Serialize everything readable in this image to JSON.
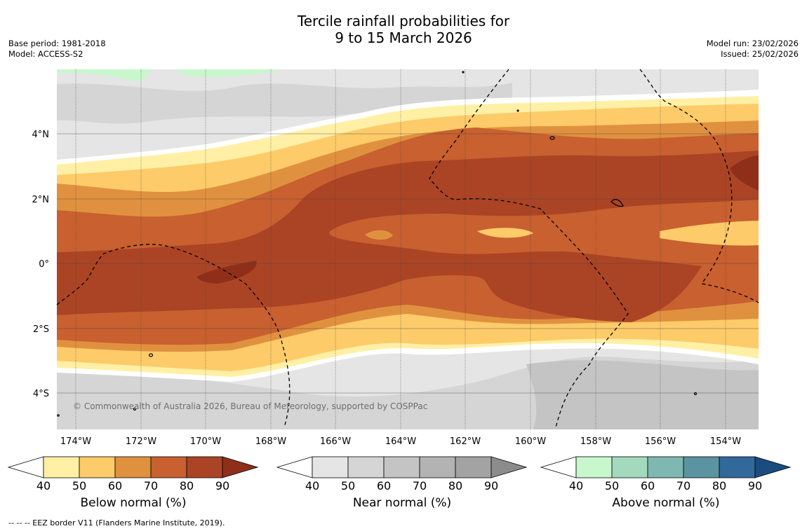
{
  "header": {
    "title_line1": "Tercile rainfall probabilities for",
    "title_line2": "9 to 15 March 2026",
    "base_period": "Base period: 1981-2018",
    "model": "Model: ACCESS-S2",
    "model_run": "Model run: 23/02/2026",
    "issued": "Issued: 25/02/2026"
  },
  "map": {
    "lon_labels": [
      "174°W",
      "172°W",
      "170°W",
      "168°W",
      "166°W",
      "164°W",
      "162°W",
      "160°W",
      "158°W",
      "156°W",
      "154°W"
    ],
    "lat_labels": [
      "4°N",
      "2°N",
      "0°",
      "2°S",
      "4°S"
    ],
    "credit": "© Commonwealth of Australia 2026, Bureau of Meteorology, supported by COSPPac",
    "colors": {
      "below": [
        "#fff0a5",
        "#fdcb69",
        "#e0913f",
        "#c8602f",
        "#ab4425",
        "#8f2f1a"
      ],
      "near": [
        "#e5e5e5",
        "#d5d5d5",
        "#c4c4c4",
        "#b3b3b3",
        "#a3a3a3",
        "#8c8c8c"
      ],
      "above": [
        "#c8f7cd",
        "#a3d9bd",
        "#7fb8b1",
        "#5b93a0",
        "#33689b",
        "#1a4c80"
      ]
    }
  },
  "colorbars": {
    "ticks": [
      "40",
      "50",
      "60",
      "70",
      "80",
      "90"
    ],
    "below_label": "Below normal (%)",
    "near_label": "Near normal (%)",
    "above_label": "Above normal (%)"
  },
  "footer": {
    "eez_note": "--  --  -- EEZ border V11 (Flanders Marine Institute, 2019)."
  }
}
